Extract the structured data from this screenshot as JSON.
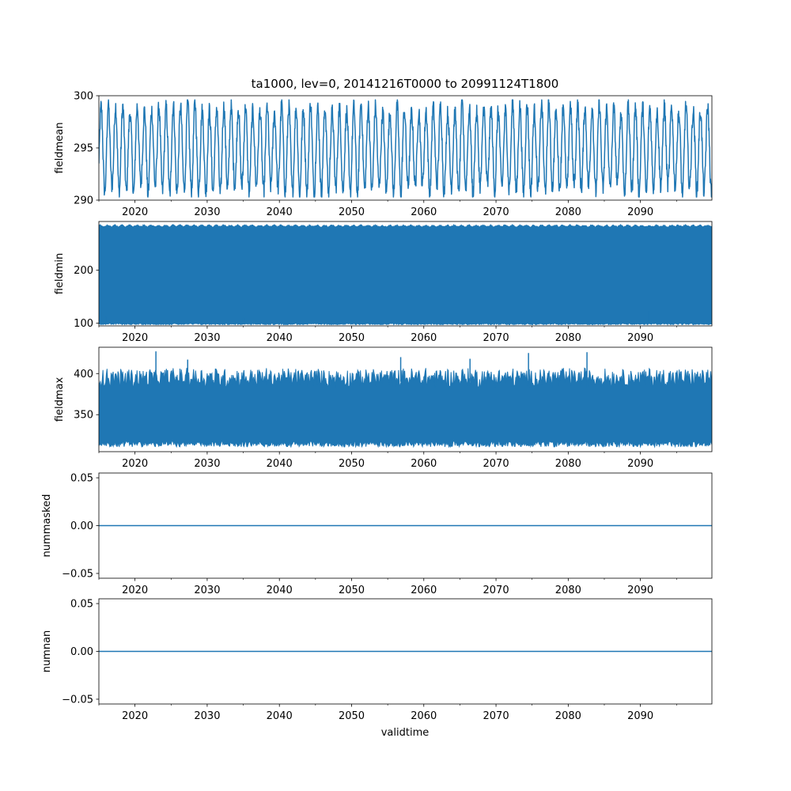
{
  "chart_data": {
    "type": "line",
    "title": "ta1000, lev=0, 20141216T0000 to 20991124T1800",
    "xlabel": "validtime",
    "xlim": [
      2015.0,
      2099.9
    ],
    "x_ticks": [
      2020,
      2030,
      2040,
      2050,
      2060,
      2070,
      2080,
      2090
    ],
    "x_tick_labels": [
      "2020",
      "2030",
      "2040",
      "2050",
      "2060",
      "2070",
      "2080",
      "2090"
    ],
    "series_color": "#1f77b4",
    "panels": [
      {
        "key": "fieldmean",
        "ylabel": "fieldmean",
        "ylim": [
          290,
          300
        ],
        "y_ticks": [
          290,
          295,
          300
        ],
        "y_tick_labels": [
          "290",
          "295",
          "300"
        ],
        "signal": {
          "kind": "seasonal-oscillation",
          "mean": 294.7,
          "cycle_period_years": 1.0,
          "typical_min": 291.0,
          "typical_max": 298.8,
          "observed_min": 290.3,
          "observed_max": 299.6
        }
      },
      {
        "key": "fieldmin",
        "ylabel": "fieldmin",
        "ylim": [
          95,
          292
        ],
        "y_ticks": [
          100,
          200
        ],
        "y_tick_labels": [
          "100",
          "200"
        ],
        "signal": {
          "kind": "dense-band",
          "band_low": 100,
          "band_high": 283,
          "observed_min": 97,
          "observed_max": 287,
          "spikes": [
            [
              2091.2,
              123
            ],
            [
              2016.0,
              112
            ],
            [
              2035.0,
              110
            ]
          ]
        }
      },
      {
        "key": "fieldmax",
        "ylabel": "fieldmax",
        "ylim": [
          305,
          432
        ],
        "y_ticks": [
          350,
          400
        ],
        "y_tick_labels": [
          "350",
          "400"
        ],
        "signal": {
          "kind": "dense-band",
          "band_low": 318,
          "band_high": 390,
          "observed_min": 310,
          "observed_max": 427,
          "spikes": [
            [
              2022.9,
              427
            ],
            [
              2082.6,
              426
            ],
            [
              2074.5,
              425
            ],
            [
              2056.8,
              420
            ],
            [
              2066.4,
              418
            ],
            [
              2027.3,
              417
            ]
          ]
        }
      },
      {
        "key": "nummasked",
        "ylabel": "nummasked",
        "ylim": [
          -0.055,
          0.055
        ],
        "y_ticks": [
          -0.05,
          0.0,
          0.05
        ],
        "y_tick_labels": [
          "−0.05",
          "0.00",
          "0.05"
        ],
        "signal": {
          "kind": "constant",
          "value": 0.0
        }
      },
      {
        "key": "numnan",
        "ylabel": "numnan",
        "ylim": [
          -0.055,
          0.055
        ],
        "y_ticks": [
          -0.05,
          0.0,
          0.05
        ],
        "y_tick_labels": [
          "−0.05",
          "0.00",
          "0.05"
        ],
        "signal": {
          "kind": "constant",
          "value": 0.0
        }
      }
    ]
  }
}
